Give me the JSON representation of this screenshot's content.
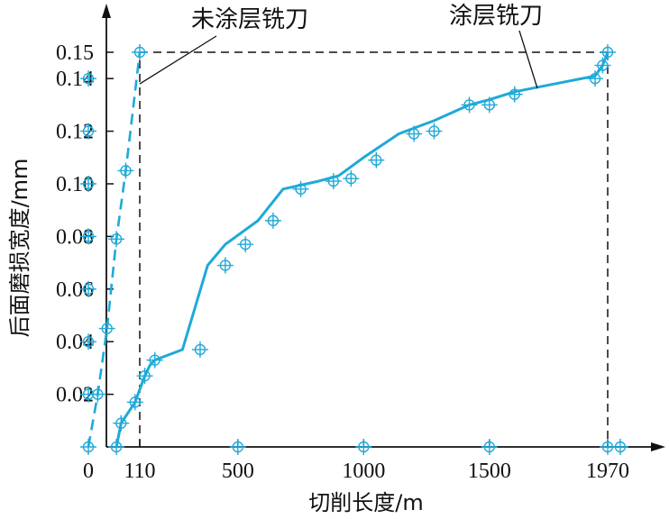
{
  "chart_data": {
    "type": "line",
    "xlabel": "切削长度/m",
    "ylabel": "后面磨损宽度/mm",
    "x_ticks": [
      0,
      110,
      500,
      1000,
      1500,
      1970
    ],
    "y_ticks": [
      0.02,
      0.04,
      0.06,
      0.08,
      0.1,
      0.12,
      0.14,
      0.15
    ],
    "x_tick_labels": [
      "0",
      "110",
      "500",
      "1000",
      "1500",
      "1970"
    ],
    "y_tick_labels": [
      "0.02",
      "0.04",
      "0.06",
      "0.08",
      "0.10",
      "0.12",
      "0.14",
      "0.15"
    ],
    "xlim": [
      0,
      2050
    ],
    "ylim": [
      0,
      0.163
    ],
    "grid": false,
    "reference_lines": [
      {
        "from": [
          110,
          0
        ],
        "to": [
          110,
          0.15
        ]
      },
      {
        "from": [
          110,
          0.15
        ],
        "to": [
          1970,
          0.15
        ]
      },
      {
        "from": [
          1970,
          0.15
        ],
        "to": [
          1970,
          0
        ]
      }
    ],
    "series": [
      {
        "name": "未涂层铣刀",
        "style": "dashed",
        "x": [
          0,
          20,
          40,
          60,
          80,
          110
        ],
        "y": [
          0,
          0.02,
          0.045,
          0.079,
          0.105,
          0.15
        ]
      },
      {
        "name": "涂层铣刀",
        "style": "solid",
        "x": [
          60,
          70,
          100,
          130,
          150,
          170,
          280,
          380,
          450,
          580,
          680,
          820,
          900,
          1000,
          1140,
          1280,
          1420,
          1500,
          1600,
          1920,
          1950,
          1970
        ],
        "y": [
          0,
          0.009,
          0.017,
          0.027,
          0.031,
          0.033,
          0.037,
          0.069,
          0.077,
          0.086,
          0.098,
          0.101,
          0.103,
          0.11,
          0.119,
          0.124,
          0.13,
          0.132,
          0.135,
          0.141,
          0.145,
          0.15
        ]
      }
    ],
    "markers": [
      {
        "x": 0,
        "y": 0
      },
      {
        "x": 0,
        "y": 0.02
      },
      {
        "x": 0,
        "y": 0.04
      },
      {
        "x": 0,
        "y": 0.06
      },
      {
        "x": 0,
        "y": 0.08
      },
      {
        "x": 0,
        "y": 0.1
      },
      {
        "x": 0,
        "y": 0.12
      },
      {
        "x": 0,
        "y": 0.14
      },
      {
        "x": 20,
        "y": 0.02
      },
      {
        "x": 40,
        "y": 0.045
      },
      {
        "x": 60,
        "y": 0.079
      },
      {
        "x": 80,
        "y": 0.105
      },
      {
        "x": 110,
        "y": 0.15
      },
      {
        "x": 60,
        "y": 0
      },
      {
        "x": 500,
        "y": 0
      },
      {
        "x": 1000,
        "y": 0
      },
      {
        "x": 1500,
        "y": 0
      },
      {
        "x": 1970,
        "y": 0
      },
      {
        "x": 2020,
        "y": 0
      },
      {
        "x": 70,
        "y": 0.009
      },
      {
        "x": 100,
        "y": 0.017
      },
      {
        "x": 130,
        "y": 0.027
      },
      {
        "x": 170,
        "y": 0.033
      },
      {
        "x": 350,
        "y": 0.037
      },
      {
        "x": 450,
        "y": 0.069
      },
      {
        "x": 530,
        "y": 0.077
      },
      {
        "x": 640,
        "y": 0.086
      },
      {
        "x": 750,
        "y": 0.098
      },
      {
        "x": 880,
        "y": 0.101
      },
      {
        "x": 950,
        "y": 0.102
      },
      {
        "x": 1050,
        "y": 0.109
      },
      {
        "x": 1200,
        "y": 0.119
      },
      {
        "x": 1280,
        "y": 0.12
      },
      {
        "x": 1420,
        "y": 0.13
      },
      {
        "x": 1500,
        "y": 0.13
      },
      {
        "x": 1600,
        "y": 0.134
      },
      {
        "x": 1920,
        "y": 0.14
      },
      {
        "x": 1950,
        "y": 0.145
      },
      {
        "x": 1970,
        "y": 0.15
      }
    ],
    "annotations": [
      {
        "text": "未涂层铣刀",
        "points_to": [
          110,
          0.138
        ]
      },
      {
        "text": "涂层铣刀",
        "points_to": [
          1700,
          0.135
        ]
      }
    ],
    "colors": {
      "series": "#1fa9d8",
      "axes": "#111111",
      "reference": "#111111"
    }
  }
}
